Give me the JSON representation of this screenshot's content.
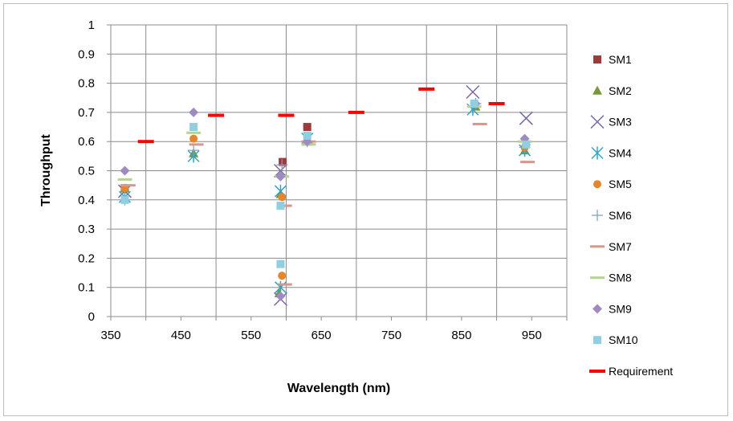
{
  "chart_data": {
    "type": "scatter",
    "title": "",
    "xlabel": "Wavelength (nm)",
    "ylabel": "Throughput",
    "xlim": [
      350,
      1000
    ],
    "ylim": [
      0,
      1
    ],
    "xticks": [
      350,
      450,
      550,
      650,
      750,
      850,
      950
    ],
    "yticks": [
      0,
      0.1,
      0.2,
      0.3,
      0.4,
      0.5,
      0.6,
      0.7,
      0.8,
      0.9,
      1
    ],
    "grid": "major gridlines on both axes",
    "legend_position": "right",
    "series": [
      {
        "name": "SM1",
        "marker": "square",
        "color": "#9b3b3a",
        "x": [
          370,
          595,
          630
        ],
        "y": [
          0.44,
          0.53,
          0.65
        ]
      },
      {
        "name": "SM2",
        "marker": "triangle",
        "color": "#76973a",
        "x": [
          370,
          468,
          590,
          592,
          630,
          870,
          940
        ],
        "y": [
          0.44,
          0.56,
          0.08,
          0.42,
          0.6,
          0.72,
          0.57
        ]
      },
      {
        "name": "SM3",
        "marker": "x",
        "color": "#7b67a0",
        "x": [
          370,
          592,
          592,
          866,
          942
        ],
        "y": [
          0.43,
          0.06,
          0.5,
          0.77,
          0.68
        ]
      },
      {
        "name": "SM4",
        "marker": "star",
        "color": "#32a4c0",
        "x": [
          370,
          468,
          592,
          592,
          630,
          866,
          940
        ],
        "y": [
          0.41,
          0.55,
          0.43,
          0.1,
          0.61,
          0.71,
          0.57
        ]
      },
      {
        "name": "SM5",
        "marker": "circle",
        "color": "#e5862d",
        "x": [
          370,
          468,
          594,
          594,
          630,
          940
        ],
        "y": [
          0.44,
          0.61,
          0.41,
          0.14,
          0.6,
          0.58
        ]
      },
      {
        "name": "SM6",
        "marker": "plus",
        "color": "#7f9ccb",
        "x": [
          370,
          468,
          594,
          630,
          870,
          940
        ],
        "y": [
          0.4,
          0.57,
          0.52,
          0.6,
          0.73,
          0.58
        ]
      },
      {
        "name": "SM7",
        "marker": "dash",
        "color": "#d8978d",
        "x": [
          375,
          472,
          598,
          598,
          632,
          876,
          944
        ],
        "y": [
          0.45,
          0.59,
          0.38,
          0.11,
          0.6,
          0.66,
          0.53
        ]
      },
      {
        "name": "SM8",
        "marker": "dash",
        "color": "#b6d391",
        "x": [
          370,
          468,
          594,
          632,
          868,
          940
        ],
        "y": [
          0.47,
          0.63,
          0.48,
          0.59,
          0.72,
          0.6
        ]
      },
      {
        "name": "SM9",
        "marker": "diamond",
        "color": "#9f8ac2",
        "x": [
          370,
          468,
          592,
          592,
          630,
          870,
          940
        ],
        "y": [
          0.5,
          0.7,
          0.48,
          0.07,
          0.6,
          0.73,
          0.61
        ]
      },
      {
        "name": "SM10",
        "marker": "square",
        "color": "#92cde0",
        "x": [
          370,
          468,
          592,
          592,
          630,
          868,
          942
        ],
        "y": [
          0.4,
          0.65,
          0.38,
          0.18,
          0.62,
          0.73,
          0.59
        ]
      },
      {
        "name": "Requirement",
        "marker": "dash",
        "color": "#ff0000",
        "x": [
          400,
          500,
          600,
          700,
          800,
          900
        ],
        "y": [
          0.6,
          0.69,
          0.69,
          0.7,
          0.78,
          0.73
        ]
      }
    ]
  }
}
